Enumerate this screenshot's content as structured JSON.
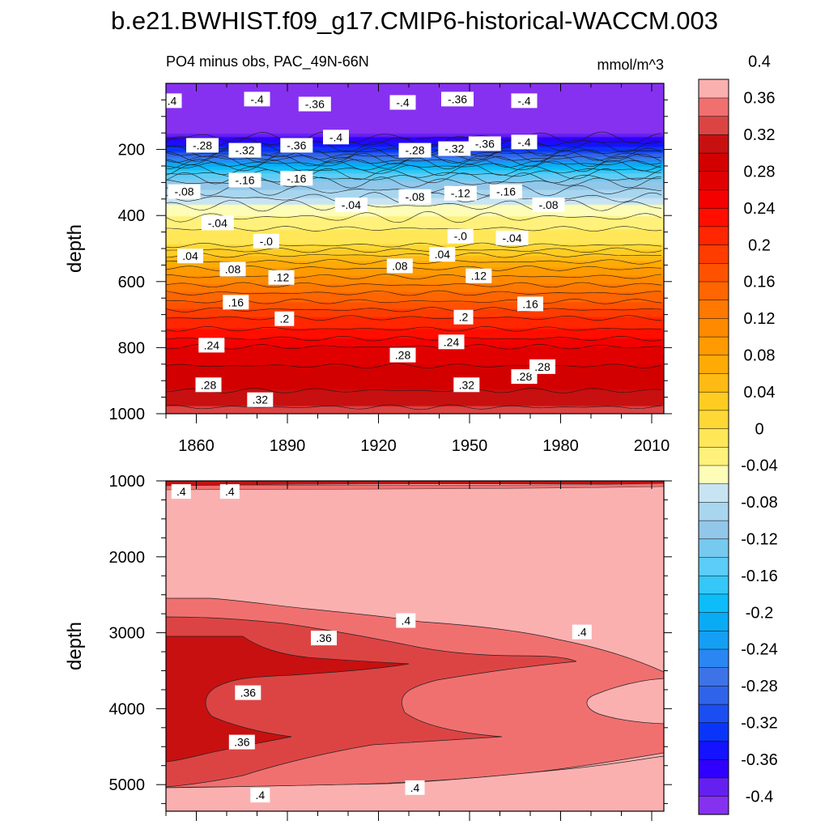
{
  "page_title": "b.e21.BWHIST.f09_g17.CMIP6-historical-WACCM.003",
  "chart_data": [
    {
      "type": "heatmap",
      "subtype": "filled-contour",
      "title": "PO4 minus obs, PAC_49N-66N",
      "units": "mmol/m^3",
      "xlabel": "",
      "ylabel": "depth",
      "xlim": [
        1850,
        2014
      ],
      "ylim": [
        1000,
        0
      ],
      "x_ticks": [
        1860,
        1890,
        1920,
        1950,
        1980,
        2010
      ],
      "y_ticks": [
        200,
        400,
        600,
        800,
        1000
      ],
      "profile": [
        {
          "depth": 0,
          "value": -0.4
        },
        {
          "depth": 150,
          "value": -0.4
        },
        {
          "depth": 205,
          "value": -0.32
        },
        {
          "depth": 250,
          "value": -0.2
        },
        {
          "depth": 300,
          "value": -0.12
        },
        {
          "depth": 370,
          "value": -0.06
        },
        {
          "depth": 440,
          "value": -0.02
        },
        {
          "depth": 490,
          "value": 0.0
        },
        {
          "depth": 520,
          "value": 0.04
        },
        {
          "depth": 560,
          "value": 0.08
        },
        {
          "depth": 610,
          "value": 0.12
        },
        {
          "depth": 660,
          "value": 0.16
        },
        {
          "depth": 710,
          "value": 0.2
        },
        {
          "depth": 760,
          "value": 0.23
        },
        {
          "depth": 810,
          "value": 0.27
        },
        {
          "depth": 900,
          "value": 0.29
        },
        {
          "depth": 960,
          "value": 0.31
        },
        {
          "depth": 1000,
          "value": 0.33
        }
      ],
      "contour_labels": [
        {
          "text": ".4",
          "x": 1852,
          "depth": 55
        },
        {
          "text": "-.4",
          "x": 1880,
          "depth": 50
        },
        {
          "text": "-.36",
          "x": 1899,
          "depth": 65
        },
        {
          "text": "-.4",
          "x": 1928,
          "depth": 60
        },
        {
          "text": "-.36",
          "x": 1946,
          "depth": 50
        },
        {
          "text": "-.4",
          "x": 1968,
          "depth": 55
        },
        {
          "text": "-.28",
          "x": 1862,
          "depth": 190
        },
        {
          "text": "-.32",
          "x": 1876,
          "depth": 205
        },
        {
          "text": "-.36",
          "x": 1893,
          "depth": 190
        },
        {
          "text": "-.4",
          "x": 1906,
          "depth": 165
        },
        {
          "text": "-.28",
          "x": 1932,
          "depth": 205
        },
        {
          "text": "-.32",
          "x": 1945,
          "depth": 200
        },
        {
          "text": "-.36",
          "x": 1955,
          "depth": 185
        },
        {
          "text": "-.4",
          "x": 1968,
          "depth": 180
        },
        {
          "text": "-.08",
          "x": 1856,
          "depth": 330
        },
        {
          "text": "-.16",
          "x": 1876,
          "depth": 295
        },
        {
          "text": "-.16",
          "x": 1893,
          "depth": 290
        },
        {
          "text": "-.04",
          "x": 1911,
          "depth": 370
        },
        {
          "text": "-.08",
          "x": 1932,
          "depth": 345
        },
        {
          "text": "-.12",
          "x": 1947,
          "depth": 335
        },
        {
          "text": "-.16",
          "x": 1962,
          "depth": 330
        },
        {
          "text": "-.08",
          "x": 1976,
          "depth": 370
        },
        {
          "text": "-.04",
          "x": 1867,
          "depth": 425
        },
        {
          "text": "-.0",
          "x": 1883,
          "depth": 480
        },
        {
          "text": "-.0",
          "x": 1947,
          "depth": 465
        },
        {
          "text": "-.04",
          "x": 1964,
          "depth": 470
        },
        {
          "text": ".04",
          "x": 1858,
          "depth": 525
        },
        {
          "text": ".08",
          "x": 1872,
          "depth": 565
        },
        {
          "text": ".12",
          "x": 1888,
          "depth": 590
        },
        {
          "text": ".08",
          "x": 1927,
          "depth": 555
        },
        {
          "text": ".04",
          "x": 1941,
          "depth": 520
        },
        {
          "text": ".12",
          "x": 1953,
          "depth": 585
        },
        {
          "text": ".16",
          "x": 1873,
          "depth": 665
        },
        {
          "text": ".2",
          "x": 1889,
          "depth": 715
        },
        {
          "text": ".2",
          "x": 1948,
          "depth": 710
        },
        {
          "text": ".16",
          "x": 1970,
          "depth": 670
        },
        {
          "text": ".24",
          "x": 1865,
          "depth": 795
        },
        {
          "text": ".28",
          "x": 1928,
          "depth": 825
        },
        {
          "text": ".24",
          "x": 1944,
          "depth": 785
        },
        {
          "text": ".28",
          "x": 1968,
          "depth": 890
        },
        {
          "text": ".28",
          "x": 1974,
          "depth": 860
        },
        {
          "text": ".28",
          "x": 1864,
          "depth": 915
        },
        {
          "text": ".32",
          "x": 1881,
          "depth": 960
        },
        {
          "text": ".32",
          "x": 1949,
          "depth": 915
        }
      ]
    },
    {
      "type": "heatmap",
      "subtype": "filled-contour",
      "title": "",
      "xlabel": "",
      "ylabel": "depth",
      "xlim": [
        1850,
        2014
      ],
      "ylim": [
        5350,
        1000
      ],
      "y_ticks": [
        1000,
        2000,
        3000,
        4000,
        5000
      ],
      "regions": [
        {
          "value": 0.4,
          "description": "background"
        },
        {
          "value": 0.37,
          "description": "upper band 2550-5080"
        },
        {
          "value": 0.355,
          "description": "core 2850-4760"
        },
        {
          "value": 0.42,
          "description": "eastern lens near 3700-4100"
        }
      ],
      "contour_labels": [
        {
          "text": ".4",
          "x": 1855,
          "depth": 1150
        },
        {
          "text": ".4",
          "x": 1871,
          "depth": 1150
        },
        {
          "text": ".4",
          "x": 1929,
          "depth": 2850
        },
        {
          "text": ".4",
          "x": 1987,
          "depth": 3000
        },
        {
          "text": ".36",
          "x": 1902,
          "depth": 3080
        },
        {
          "text": ".36",
          "x": 1877,
          "depth": 3800
        },
        {
          "text": ".36",
          "x": 1875,
          "depth": 4450
        },
        {
          "text": ".4",
          "x": 1881,
          "depth": 5150
        },
        {
          "text": ".4",
          "x": 1932,
          "depth": 5050
        }
      ]
    }
  ],
  "colorbar": {
    "unit_label": "mmol/m^3",
    "colors": [
      "#8631f0",
      "#6420f1",
      "#2f00ff",
      "#1412ff",
      "#0a35f9",
      "#1b4ef0",
      "#2f64ea",
      "#3d73e7",
      "#2a86f2",
      "#149ff4",
      "#0aabf5",
      "#0cbdf9",
      "#35c7f7",
      "#5ccdf6",
      "#76c9ef",
      "#92c7ea",
      "#a9d6ef",
      "#c8e4f3",
      "#fdfdb7",
      "#fff17b",
      "#ffe758",
      "#ffd835",
      "#ffcc22",
      "#ffba14",
      "#ffaa05",
      "#ff9a00",
      "#ff8a00",
      "#ff7800",
      "#ff6500",
      "#ff5200",
      "#ff3c00",
      "#ff2600",
      "#ff0e00",
      "#f30000",
      "#e10000",
      "#d30000",
      "#c81010",
      "#dc4444",
      "#f07070",
      "#fbb0b0"
    ],
    "tick_labels": [
      "-0.4",
      "-0.36",
      "-0.32",
      "-0.28",
      "-0.24",
      "-0.2",
      "-0.16",
      "-0.12",
      "-0.08",
      "-0.04",
      "0",
      "0.04",
      "0.08",
      "0.12",
      "0.16",
      "0.2",
      "0.24",
      "0.28",
      "0.32",
      "0.36",
      "0.4"
    ]
  }
}
